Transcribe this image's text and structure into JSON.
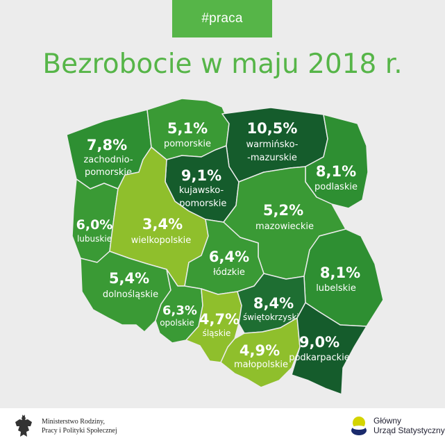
{
  "header": {
    "tag": "#praca",
    "title": "Bezrobocie w maju 2018 r."
  },
  "colors": {
    "light": "#8fbf2c",
    "medium": "#3a9a35",
    "green": "#2e8f32",
    "dark": "#1e6e32",
    "darkest": "#155c2c"
  },
  "regions": {
    "zachodniopomorskie": {
      "value": "7,8%",
      "name_line1": "zachodnio-",
      "name_line2": "pomorskie"
    },
    "pomorskie": {
      "value": "5,1%",
      "name_line1": "pomorskie"
    },
    "warminsko_mazurskie": {
      "value": "10,5%",
      "name_line1": "warmińsko-",
      "name_line2": "-mazurskie"
    },
    "podlaskie": {
      "value": "8,1%",
      "name_line1": "podlaskie"
    },
    "kujawsko_pomorskie": {
      "value": "9,1%",
      "name_line1": "kujawsko-",
      "name_line2": "-pomorskie"
    },
    "lubuskie": {
      "value": "6,0%",
      "name_line1": "lubuskie"
    },
    "wielkopolskie": {
      "value": "3,4%",
      "name_line1": "wielkopolskie"
    },
    "mazowieckie": {
      "value": "5,2%",
      "name_line1": "mazowieckie"
    },
    "lodzkie": {
      "value": "6,4%",
      "name_line1": "łódzkie"
    },
    "lubelskie": {
      "value": "8,1%",
      "name_line1": "lubelskie"
    },
    "dolnoslaskie": {
      "value": "5,4%",
      "name_line1": "dolnośląskie"
    },
    "opolskie": {
      "value": "6,3%",
      "name_line1": "opolskie"
    },
    "slaskie": {
      "value": "4,7%",
      "name_line1": "śląskie"
    },
    "swietokrzyskie": {
      "value": "8,4%",
      "name_line1": "świętokrzyskie"
    },
    "malopolskie": {
      "value": "4,9%",
      "name_line1": "małopolskie"
    },
    "podkarpackie": {
      "value": "9,0%",
      "name_line1": "podkarpackie"
    }
  },
  "footer": {
    "ministry_line1": "Ministerstwo Rodziny,",
    "ministry_line2": "Pracy i Polityki Społecznej",
    "gus_line1": "Główny",
    "gus_line2": "Urząd Statystyczny"
  }
}
